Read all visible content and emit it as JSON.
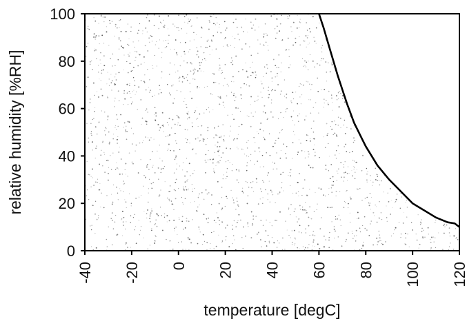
{
  "chart_data": {
    "type": "area",
    "title": "",
    "xlabel": "temperature [degC]",
    "ylabel": "relative humidity [%RH]",
    "xlim": [
      -40,
      120
    ],
    "ylim": [
      0,
      100
    ],
    "x_ticks": [
      -40,
      -20,
      0,
      20,
      40,
      60,
      80,
      100,
      120
    ],
    "x_tick_labels": [
      "-40",
      "-20",
      "0",
      "20",
      "40",
      "60",
      "80",
      "100",
      "120"
    ],
    "y_ticks": [
      0,
      20,
      40,
      60,
      80,
      100
    ],
    "y_tick_labels": [
      "0",
      "20",
      "40",
      "60",
      "80",
      "100"
    ],
    "grid": false,
    "x_tick_label_rotation": "vertical",
    "region": "stippled area below and left of the boundary curve",
    "series": [
      {
        "x": [
          60,
          62,
          65,
          68,
          70,
          72,
          75,
          78,
          80,
          85,
          90,
          95,
          100,
          105,
          110,
          115,
          118,
          120
        ],
        "values": [
          100,
          94,
          84,
          74,
          68,
          62,
          54,
          48,
          44,
          36,
          30,
          25,
          20,
          17,
          14,
          12,
          11.5,
          10
        ]
      }
    ],
    "colors": {
      "curve": "#000000",
      "stipple": "#555555",
      "frame": "#000000"
    }
  }
}
